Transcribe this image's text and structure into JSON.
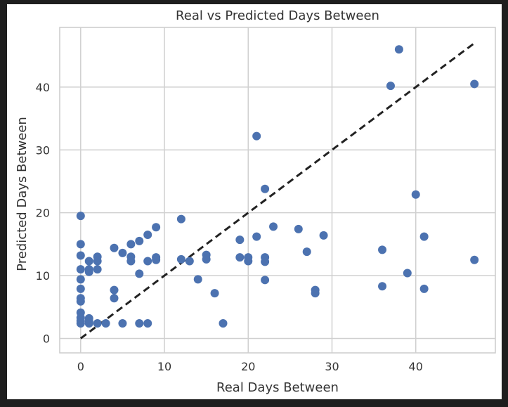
{
  "chart_data": {
    "type": "scatter",
    "title": "Real vs Predicted Days Between",
    "xlabel": "Real Days Between",
    "ylabel": "Predicted Days Between",
    "xlim": [
      -2.5,
      49.5
    ],
    "ylim": [
      -2.3,
      49.5
    ],
    "xticks": [
      0,
      10,
      20,
      30,
      40
    ],
    "yticks": [
      0,
      10,
      20,
      30,
      40
    ],
    "grid": true,
    "point_color": "#4c72b0",
    "reference_line": {
      "style": "dashed",
      "color": "#222222",
      "from": [
        0,
        0
      ],
      "to": [
        47,
        47
      ]
    },
    "series": [
      {
        "points": [
          [
            0,
            19.5
          ],
          [
            0,
            15
          ],
          [
            0,
            13.2
          ],
          [
            0,
            11
          ],
          [
            0,
            9.4
          ],
          [
            0,
            7.9
          ],
          [
            0,
            6.4
          ],
          [
            0,
            5.9
          ],
          [
            0,
            4.1
          ],
          [
            0,
            3.3
          ],
          [
            0,
            2.8
          ],
          [
            0,
            2.4
          ],
          [
            1,
            12.3
          ],
          [
            1,
            11
          ],
          [
            1,
            10.6
          ],
          [
            1,
            3.2
          ],
          [
            1,
            2.7
          ],
          [
            1,
            2.4
          ],
          [
            2,
            13
          ],
          [
            2,
            12.3
          ],
          [
            2,
            11
          ],
          [
            2,
            2.4
          ],
          [
            3,
            2.4
          ],
          [
            4,
            14.4
          ],
          [
            4,
            7.7
          ],
          [
            4,
            6.4
          ],
          [
            5,
            13.6
          ],
          [
            5,
            2.4
          ],
          [
            6,
            15
          ],
          [
            6,
            13
          ],
          [
            6,
            12.3
          ],
          [
            7,
            15.5
          ],
          [
            7,
            10.3
          ],
          [
            7,
            2.4
          ],
          [
            8,
            16.5
          ],
          [
            8,
            12.3
          ],
          [
            8,
            2.4
          ],
          [
            9,
            17.7
          ],
          [
            9,
            12.9
          ],
          [
            9,
            12.5
          ],
          [
            12,
            19
          ],
          [
            12,
            12.6
          ],
          [
            13,
            12.3
          ],
          [
            14,
            9.4
          ],
          [
            15,
            13.3
          ],
          [
            15,
            12.6
          ],
          [
            16,
            7.2
          ],
          [
            17,
            2.4
          ],
          [
            19,
            15.7
          ],
          [
            19,
            12.9
          ],
          [
            20,
            12.9
          ],
          [
            20,
            12.3
          ],
          [
            21,
            32.2
          ],
          [
            21,
            16.2
          ],
          [
            22,
            23.8
          ],
          [
            22,
            12.9
          ],
          [
            22,
            12.2
          ],
          [
            22,
            9.3
          ],
          [
            23,
            17.8
          ],
          [
            26,
            17.4
          ],
          [
            27,
            13.8
          ],
          [
            28,
            7.7
          ],
          [
            28,
            7.2
          ],
          [
            29,
            16.4
          ],
          [
            36,
            14.1
          ],
          [
            36,
            8.3
          ],
          [
            37,
            40.2
          ],
          [
            38,
            46
          ],
          [
            39,
            10.4
          ],
          [
            40,
            22.9
          ],
          [
            41,
            16.2
          ],
          [
            41,
            7.9
          ],
          [
            47,
            40.5
          ],
          [
            47,
            12.5
          ]
        ]
      }
    ]
  }
}
